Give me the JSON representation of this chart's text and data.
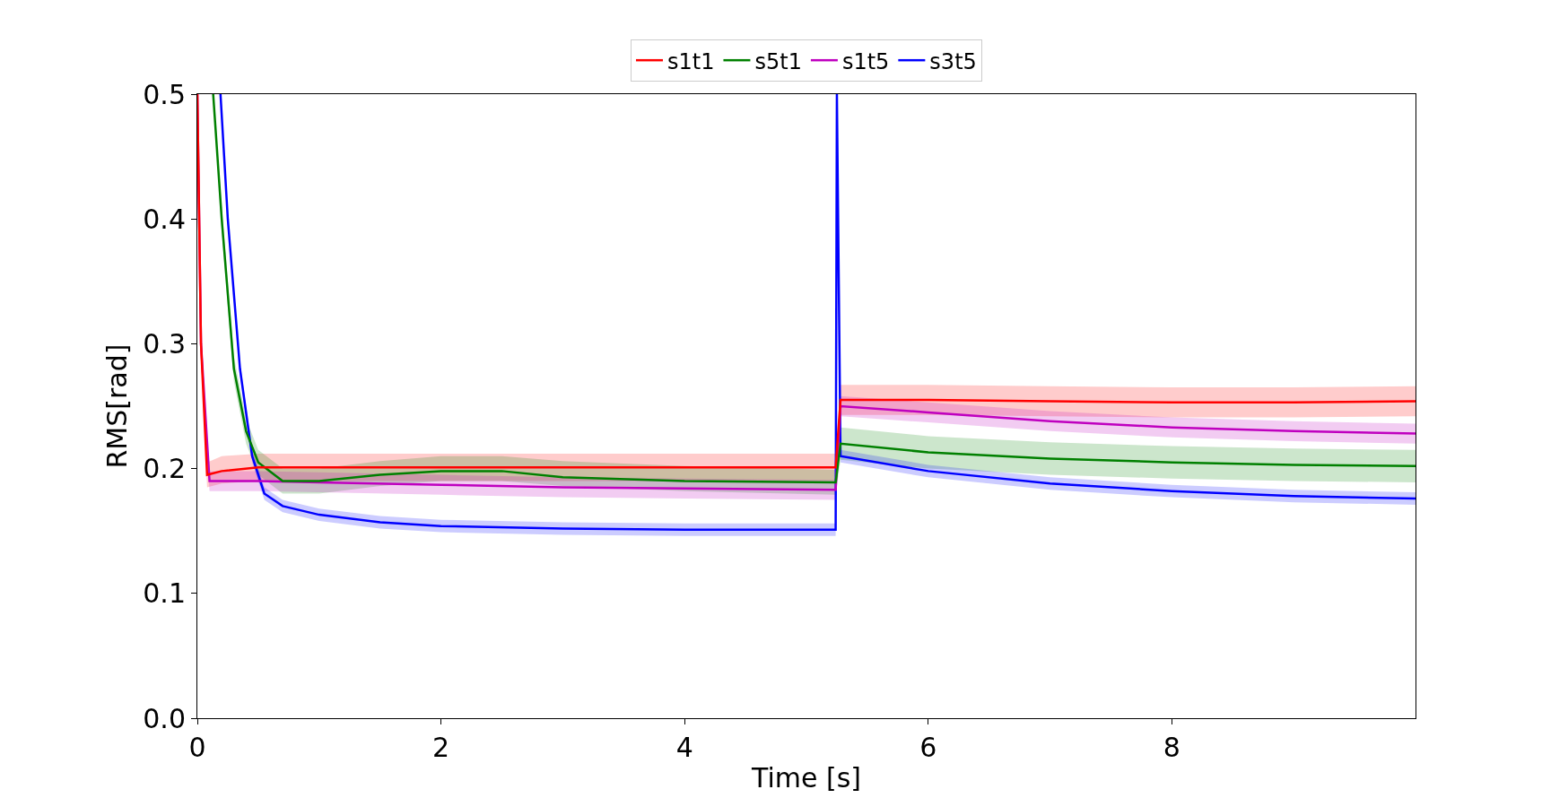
{
  "chart_data": {
    "type": "line",
    "xlabel": "Time [s]",
    "ylabel": "RMS[rad]",
    "xlim": [
      0,
      10
    ],
    "xticks": [
      0,
      2,
      4,
      6,
      8
    ],
    "ylim": [
      0,
      0.5
    ],
    "yticks": [
      {
        "value": 0,
        "label": "0.0"
      },
      0.1,
      0.2,
      0.3,
      0.4,
      0.5
    ],
    "legend": "top",
    "marker": "none",
    "line_style": "solid",
    "series": [
      {
        "name": "s1t1",
        "color": "#ff0000",
        "x": [
          0,
          0.03,
          0.08,
          0.2,
          0.5,
          1,
          2,
          3,
          4,
          5.24,
          5.28,
          6,
          7,
          8,
          9,
          10
        ],
        "values": [
          0.5,
          0.3,
          0.195,
          0.198,
          0.201,
          0.201,
          0.201,
          0.201,
          0.201,
          0.201,
          0.255,
          0.255,
          0.254,
          0.253,
          0.253,
          0.254
        ],
        "lower": [
          0.5,
          0.29,
          0.185,
          0.188,
          0.19,
          0.19,
          0.19,
          0.19,
          0.19,
          0.19,
          0.243,
          0.243,
          0.242,
          0.241,
          0.241,
          0.242
        ],
        "upper": [
          0.5,
          0.31,
          0.205,
          0.21,
          0.212,
          0.212,
          0.212,
          0.212,
          0.212,
          0.212,
          0.267,
          0.267,
          0.266,
          0.265,
          0.265,
          0.266
        ]
      },
      {
        "name": "s5t1",
        "color": "#008000",
        "x": [
          0.13,
          0.2,
          0.3,
          0.4,
          0.5,
          0.7,
          1,
          1.5,
          2,
          2.5,
          3,
          4,
          5.24,
          5.28,
          6,
          7,
          8,
          9,
          10
        ],
        "values": [
          0.5,
          0.4,
          0.28,
          0.23,
          0.205,
          0.19,
          0.19,
          0.195,
          0.198,
          0.198,
          0.193,
          0.19,
          0.189,
          0.22,
          0.213,
          0.208,
          0.205,
          0.203,
          0.202
        ],
        "lower": [
          0.5,
          0.39,
          0.27,
          0.22,
          0.195,
          0.18,
          0.18,
          0.186,
          0.19,
          0.19,
          0.186,
          0.182,
          0.179,
          0.207,
          0.2,
          0.195,
          0.192,
          0.19,
          0.189
        ],
        "upper": [
          0.5,
          0.41,
          0.29,
          0.24,
          0.215,
          0.2,
          0.2,
          0.206,
          0.21,
          0.21,
          0.206,
          0.202,
          0.199,
          0.233,
          0.226,
          0.221,
          0.218,
          0.216,
          0.215
        ]
      },
      {
        "name": "s1t5",
        "color": "#bf00bf",
        "x": [
          0,
          0.03,
          0.1,
          0.5,
          1,
          2,
          3,
          4,
          5.24,
          5.28,
          6,
          7,
          8,
          9,
          10
        ],
        "values": [
          0.5,
          0.3,
          0.19,
          0.19,
          0.189,
          0.187,
          0.185,
          0.184,
          0.183,
          0.25,
          0.245,
          0.238,
          0.233,
          0.23,
          0.228
        ],
        "lower": [
          0.5,
          0.292,
          0.182,
          0.182,
          0.181,
          0.179,
          0.177,
          0.176,
          0.175,
          0.242,
          0.237,
          0.23,
          0.225,
          0.222,
          0.22
        ],
        "upper": [
          0.5,
          0.308,
          0.198,
          0.198,
          0.197,
          0.195,
          0.193,
          0.192,
          0.191,
          0.258,
          0.253,
          0.246,
          0.241,
          0.238,
          0.236
        ]
      },
      {
        "name": "s3t5",
        "color": "#0000ff",
        "x": [
          0.19,
          0.25,
          0.35,
          0.45,
          0.55,
          0.7,
          1,
          1.5,
          2,
          3,
          4,
          5.24,
          5.25,
          5.28,
          6,
          7,
          8,
          9,
          10
        ],
        "values": [
          0.5,
          0.4,
          0.28,
          0.21,
          0.18,
          0.17,
          0.163,
          0.157,
          0.154,
          0.152,
          0.151,
          0.151,
          0.5,
          0.21,
          0.198,
          0.188,
          0.182,
          0.178,
          0.176
        ],
        "lower": [
          0.5,
          0.395,
          0.275,
          0.205,
          0.175,
          0.165,
          0.158,
          0.152,
          0.149,
          0.147,
          0.146,
          0.146,
          0.5,
          0.205,
          0.193,
          0.183,
          0.177,
          0.173,
          0.171
        ],
        "upper": [
          0.5,
          0.405,
          0.285,
          0.215,
          0.185,
          0.175,
          0.168,
          0.162,
          0.159,
          0.157,
          0.156,
          0.156,
          0.5,
          0.215,
          0.203,
          0.193,
          0.187,
          0.183,
          0.181
        ]
      }
    ]
  }
}
